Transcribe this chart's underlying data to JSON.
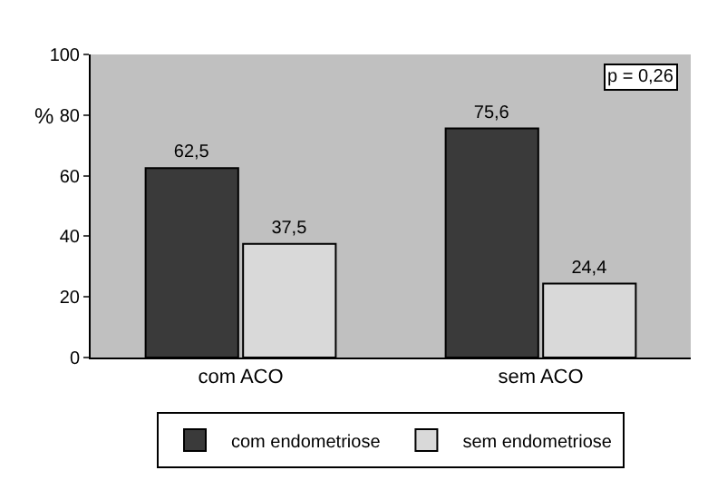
{
  "chart_data": {
    "type": "bar",
    "ylabel": "%",
    "categories": [
      "com ACO",
      "sem ACO"
    ],
    "series": [
      {
        "name": "com endometriose",
        "color": "#3a3a3a",
        "values": [
          62.5,
          75.6
        ],
        "value_labels": [
          "62,5",
          "75,6"
        ]
      },
      {
        "name": "sem endometriose",
        "color": "#d9d9d9",
        "values": [
          37.5,
          24.4
        ],
        "value_labels": [
          "37,5",
          "24,4"
        ]
      }
    ],
    "ylim": [
      0,
      100
    ],
    "yticks": [
      0,
      20,
      40,
      60,
      80,
      100
    ],
    "grid": false,
    "legend": "bottom",
    "annotations": [
      "p = 0,26"
    ]
  }
}
